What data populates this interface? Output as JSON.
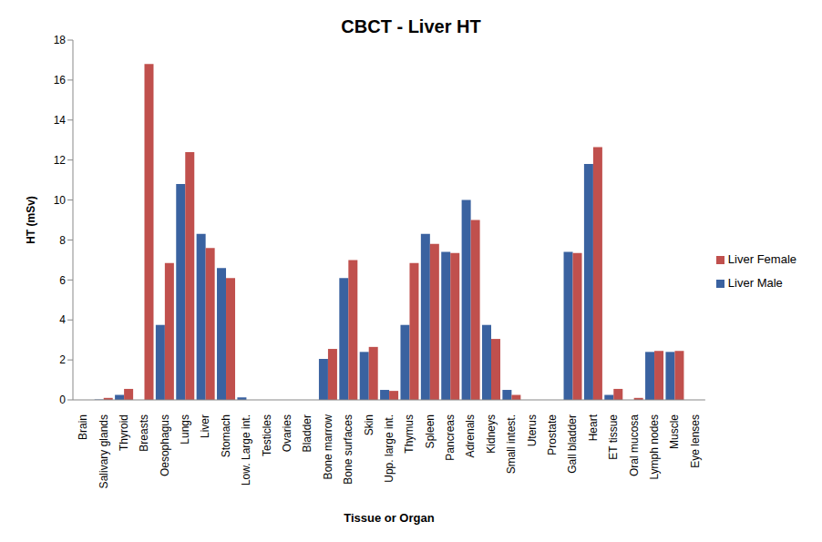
{
  "chart_data": {
    "type": "bar",
    "title": "CBCT - Liver HT",
    "x_label": "Tissue or Organ",
    "y_label": "HT (mSv)",
    "categories": [
      "Brain",
      "Salivary glands",
      "Thyroid",
      "Breasts",
      "Oesophagus",
      "Lungs",
      "Liver",
      "Stomach",
      "Low. Large int.",
      "Testicles",
      "Ovaries",
      "Bladder",
      "Bone marrow",
      "Bone surfaces",
      "Skin",
      "Upp. large int.",
      "Thymus",
      "Spleen",
      "Pancreas",
      "Adrenals",
      "Kidneys",
      "Small intest.",
      "Uterus",
      "Prostate",
      "Gall bladder",
      "Heart",
      "ET tissue",
      "Oral mucosa",
      "Lymph nodes",
      "Muscle",
      "Eye lenses"
    ],
    "series": [
      {
        "name": "Liver Male",
        "color": "#3A62A0",
        "values": [
          0,
          0.02,
          0.25,
          0,
          3.75,
          10.8,
          8.3,
          6.6,
          0.12,
          0,
          0,
          0,
          2.05,
          6.1,
          2.4,
          0.5,
          3.75,
          8.3,
          7.4,
          10.0,
          3.75,
          0.5,
          0,
          0,
          7.4,
          11.8,
          0.25,
          0,
          2.4,
          2.4,
          0
        ]
      },
      {
        "name": "Liver Female",
        "color": "#C0504D",
        "values": [
          0,
          0.1,
          0.55,
          16.8,
          6.85,
          12.4,
          7.6,
          6.1,
          0,
          0,
          0,
          0,
          2.55,
          7.0,
          2.65,
          0.45,
          6.85,
          7.8,
          7.35,
          9.0,
          3.05,
          0.25,
          0,
          0,
          7.35,
          12.65,
          0.55,
          0.1,
          2.45,
          2.45,
          0
        ]
      }
    ],
    "ylim": [
      0,
      18
    ],
    "yticks": [
      0,
      2,
      4,
      6,
      8,
      10,
      12,
      14,
      16,
      18
    ],
    "grid": false,
    "legend": "right"
  }
}
